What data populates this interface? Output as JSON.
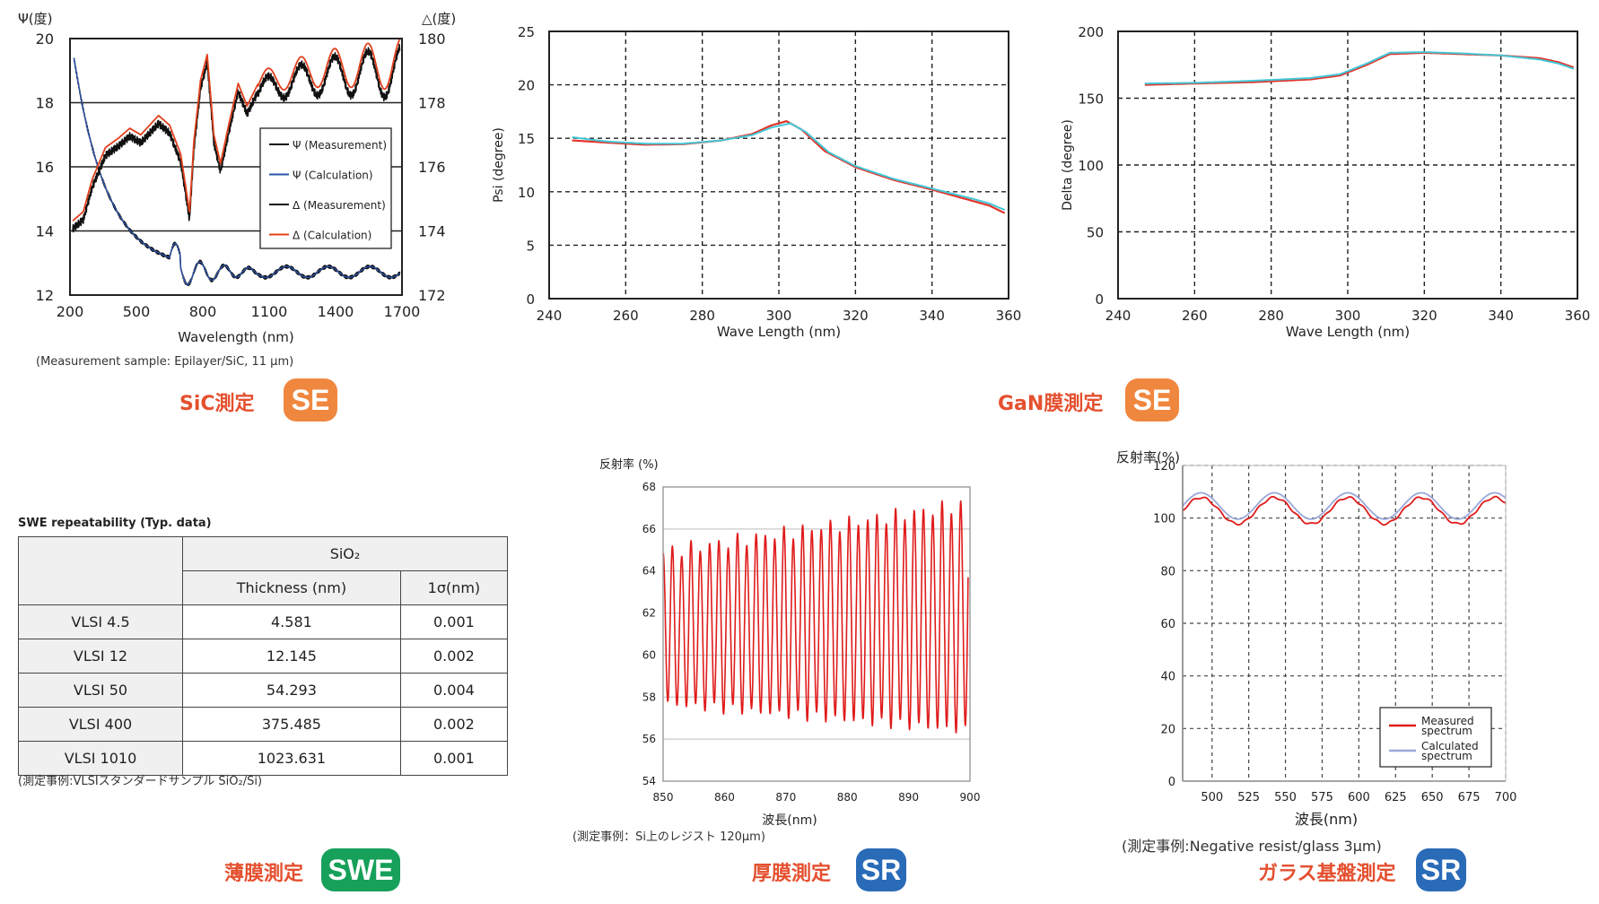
{
  "chart_data": [
    {
      "type": "line",
      "name": "sic",
      "ylabel_left": "Ψ(度)",
      "ylabel_right": "△(度)",
      "xlabel": "Wavelength (nm)",
      "x_ticks": [
        "200",
        "500",
        "800",
        "1100",
        "1400",
        "1700"
      ],
      "y_left_ticks": [
        "20",
        "18",
        "16",
        "14",
        "12"
      ],
      "y_right_ticks": [
        "180",
        "178",
        "176",
        "174",
        "172"
      ],
      "xlim": [
        200,
        1700
      ],
      "ylim_left": [
        12,
        20
      ],
      "ylim_right": [
        172,
        180
      ],
      "legend": [
        "Ψ (Measurement)",
        "Ψ (Calculation)",
        "Δ (Measurement)",
        "Δ (Calculation)"
      ],
      "colors": {
        "measurement": "#111111",
        "psi_calc": "#2a52a8",
        "delta_calc": "#e0401c"
      },
      "caption": "(Measurement sample: Epilayer/SiC, 11 μm)",
      "section_title": "SiC測定",
      "badge": "SE"
    },
    {
      "type": "line",
      "name": "gan-psi",
      "ylabel": "Psi (degree)",
      "xlabel": "Wave Length (nm)",
      "x_ticks": [
        "240",
        "260",
        "280",
        "300",
        "320",
        "340",
        "360"
      ],
      "y_ticks": [
        "25",
        "20",
        "15",
        "10",
        "5",
        "0"
      ],
      "xlim": [
        240,
        360
      ],
      "ylim": [
        0,
        25
      ],
      "measured": [
        [
          246,
          14.8
        ],
        [
          255,
          14.6
        ],
        [
          265,
          14.4
        ],
        [
          275,
          14.45
        ],
        [
          285,
          14.8
        ],
        [
          293,
          15.4
        ],
        [
          298,
          16.2
        ],
        [
          302,
          16.6
        ],
        [
          306,
          15.8
        ],
        [
          312,
          13.8
        ],
        [
          320,
          12.3
        ],
        [
          330,
          11.1
        ],
        [
          340,
          10.2
        ],
        [
          350,
          9.2
        ],
        [
          355,
          8.7
        ],
        [
          359,
          8.0
        ]
      ],
      "calculated": [
        [
          246,
          15.1
        ],
        [
          255,
          14.7
        ],
        [
          265,
          14.5
        ],
        [
          275,
          14.5
        ],
        [
          285,
          14.8
        ],
        [
          293,
          15.3
        ],
        [
          298,
          16.0
        ],
        [
          303,
          16.4
        ],
        [
          307,
          15.6
        ],
        [
          313,
          13.7
        ],
        [
          320,
          12.4
        ],
        [
          330,
          11.2
        ],
        [
          340,
          10.3
        ],
        [
          350,
          9.4
        ],
        [
          355,
          8.9
        ],
        [
          359,
          8.3
        ]
      ],
      "colors": {
        "measured": "#e4342b",
        "calculated": "#43c7d6"
      }
    },
    {
      "type": "line",
      "name": "gan-delta",
      "ylabel": "Delta (degree)",
      "xlabel": "Wave Length (nm)",
      "x_ticks": [
        "240",
        "260",
        "280",
        "300",
        "320",
        "340",
        "360"
      ],
      "y_ticks": [
        "200",
        "150",
        "100",
        "50",
        "0"
      ],
      "xlim": [
        240,
        360
      ],
      "ylim": [
        0,
        200
      ],
      "measured": [
        [
          247,
          160
        ],
        [
          260,
          161
        ],
        [
          275,
          162
        ],
        [
          290,
          164
        ],
        [
          298,
          167
        ],
        [
          305,
          175
        ],
        [
          311,
          183
        ],
        [
          320,
          184
        ],
        [
          330,
          183
        ],
        [
          340,
          182
        ],
        [
          350,
          180
        ],
        [
          355,
          177
        ],
        [
          359,
          173
        ]
      ],
      "calculated": [
        [
          247,
          161
        ],
        [
          260,
          161.5
        ],
        [
          275,
          163
        ],
        [
          290,
          165
        ],
        [
          298,
          168
        ],
        [
          305,
          176
        ],
        [
          311,
          184
        ],
        [
          320,
          184.5
        ],
        [
          330,
          183.5
        ],
        [
          340,
          182
        ],
        [
          350,
          179
        ],
        [
          355,
          176
        ],
        [
          359,
          172
        ]
      ],
      "colors": {
        "measured": "#e4342b",
        "calculated": "#43c7d6"
      },
      "section_title": "GaN膜測定",
      "badge": "SE"
    },
    {
      "type": "line",
      "name": "thick-film",
      "ylabel": "反射率 (%)",
      "xlabel": "波長(nm)",
      "x_ticks": [
        "850",
        "860",
        "870",
        "880",
        "890",
        "900"
      ],
      "y_ticks": [
        "68",
        "66",
        "64",
        "62",
        "60",
        "58",
        "56",
        "54"
      ],
      "xlim": [
        850,
        900
      ],
      "ylim": [
        54,
        68
      ],
      "cycles": 33,
      "peak_first": 64.9,
      "peak_last": 67.2,
      "trough_first": 57.7,
      "trough_last": 56.4,
      "colors": {
        "line": "#e01b1b"
      },
      "caption": "(測定事例：Si上のレジスト 120μm)",
      "section_title": "厚膜測定",
      "badge": "SR"
    },
    {
      "type": "line",
      "name": "glass",
      "ylabel": "反射率(%)",
      "xlabel": "波長(nm)",
      "x_ticks": [
        "500",
        "525",
        "550",
        "575",
        "600",
        "625",
        "650",
        "675",
        "700"
      ],
      "y_ticks": [
        "120",
        "100",
        "80",
        "60",
        "40",
        "20",
        "0"
      ],
      "xlim": [
        480,
        700
      ],
      "ylim": [
        0,
        120
      ],
      "period_nm": 50,
      "oscillation_center": 104,
      "oscillation_amplitude": 5,
      "legend": [
        "Measured spectrum",
        "Calculated spectrum"
      ],
      "colors": {
        "measured": "#e01b1b",
        "calculated": "#9aa8d8"
      },
      "caption": "(測定事例:Negative resist/glass 3μm)",
      "section_title": "ガラス基盤測定",
      "badge": "SR"
    }
  ],
  "swe": {
    "title": "SWE repeatability (Typ. data)",
    "material": "SiO₂",
    "col_thickness": "Thickness (nm)",
    "col_sigma": "1σ(nm)",
    "rows": [
      {
        "name": "VLSI 4.5",
        "thickness": "4.581",
        "sigma": "0.001"
      },
      {
        "name": "VLSI 12",
        "thickness": "12.145",
        "sigma": "0.002"
      },
      {
        "name": "VLSI 50",
        "thickness": "54.293",
        "sigma": "0.004"
      },
      {
        "name": "VLSI 400",
        "thickness": "375.485",
        "sigma": "0.002"
      },
      {
        "name": "VLSI 1010",
        "thickness": "1023.631",
        "sigma": "0.001"
      }
    ],
    "caption": "(測定事例:VLSIスタンダードサンプル SiO₂/Si)",
    "section_title": "薄膜測定",
    "badge": "SWE"
  },
  "theme": {
    "title_color": "#e4502f",
    "badge_se": "#f0873f",
    "badge_swe": "#16a05a",
    "badge_sr": "#2a6bb8"
  }
}
